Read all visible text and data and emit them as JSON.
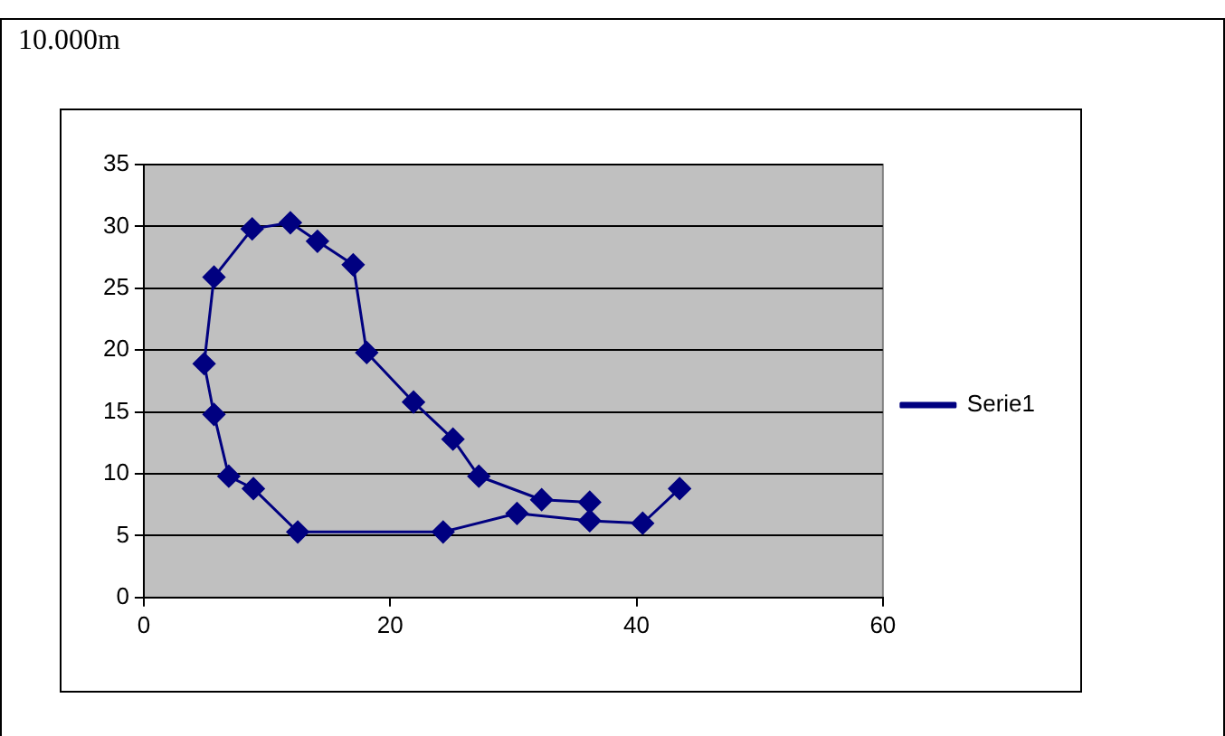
{
  "chart_data": {
    "type": "line",
    "title": "10.000m",
    "x": [
      43.5,
      40.5,
      36.2,
      30.3,
      24.3,
      12.5,
      8.9,
      6.9,
      5.7,
      4.9,
      5.7,
      8.8,
      11.9,
      14.1,
      17.0,
      18.1,
      21.9,
      25.1,
      27.2,
      32.3,
      36.2
    ],
    "series": [
      {
        "name": "Serie1",
        "color": "#000080",
        "values": [
          8.8,
          6.0,
          6.2,
          6.8,
          5.3,
          5.3,
          8.8,
          9.8,
          14.8,
          18.9,
          25.9,
          29.8,
          30.3,
          28.8,
          26.9,
          19.8,
          15.8,
          12.8,
          9.8,
          7.9,
          7.7
        ]
      }
    ],
    "xlim": [
      0,
      60
    ],
    "xticks": [
      0,
      20,
      40,
      60
    ],
    "ylim": [
      0,
      35
    ],
    "yticks": [
      0,
      5,
      10,
      15,
      20,
      25,
      30,
      35
    ],
    "grid": "y",
    "legend": "right",
    "marker": "diamond",
    "line_style": "solid"
  }
}
